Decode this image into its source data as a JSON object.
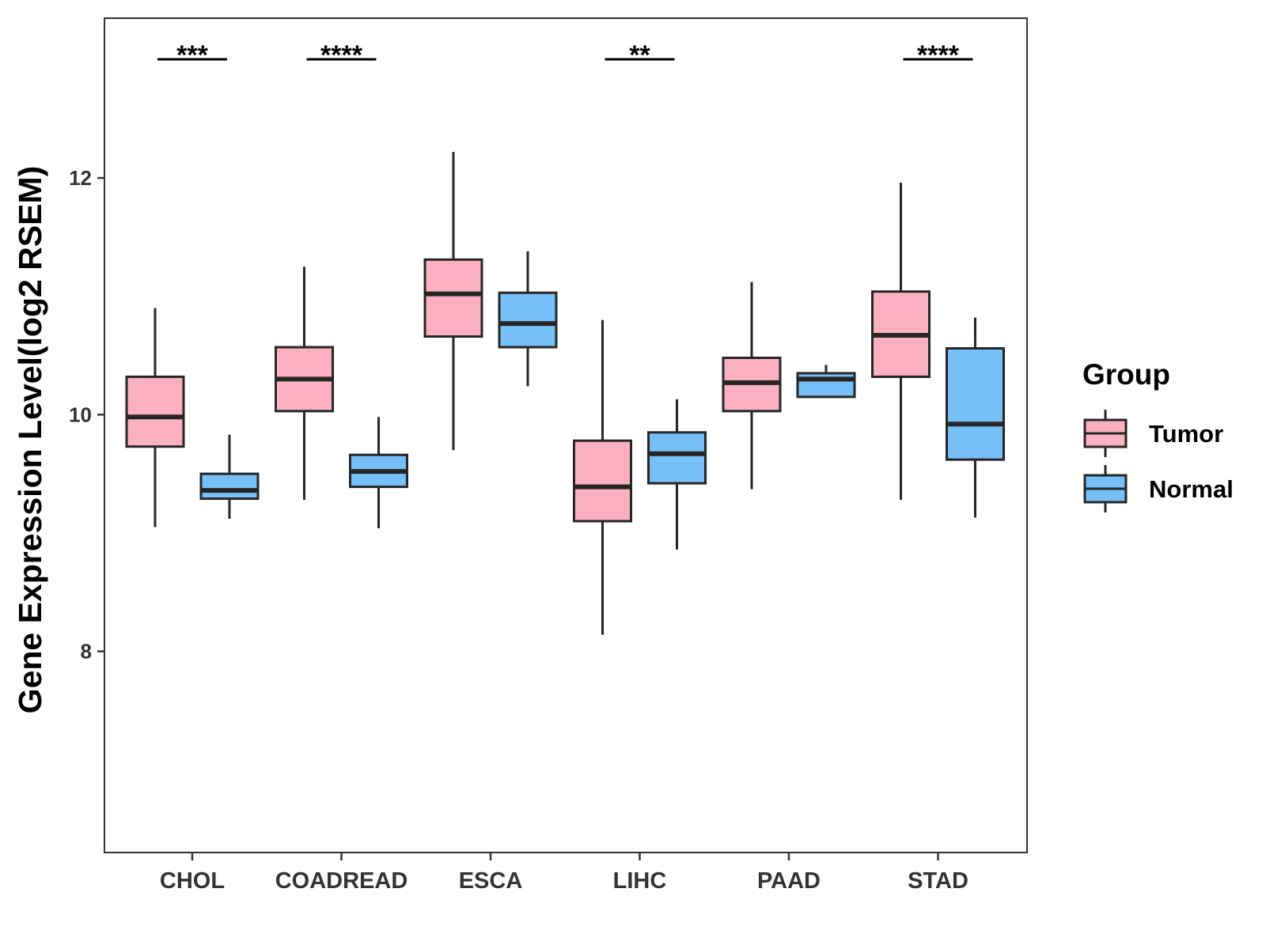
{
  "chart_data": {
    "type": "boxplot",
    "title": "",
    "xlabel": "",
    "ylabel": "Gene Expression Level(log2 RSEM)",
    "ylim": [
      6.3,
      13.35
    ],
    "yticks": [
      8,
      10,
      12
    ],
    "categories": [
      "CHOL",
      "COADREAD",
      "ESCA",
      "LIHC",
      "PAAD",
      "STAD"
    ],
    "series": [
      {
        "name": "Tumor",
        "color": "#FBB0C1",
        "boxes": [
          {
            "whisker_low": 9.05,
            "q1": 9.73,
            "median": 9.98,
            "q3": 10.32,
            "whisker_high": 10.9
          },
          {
            "whisker_low": 9.28,
            "q1": 10.03,
            "median": 10.3,
            "q3": 10.57,
            "whisker_high": 11.25
          },
          {
            "whisker_low": 9.7,
            "q1": 10.66,
            "median": 11.02,
            "q3": 11.31,
            "whisker_high": 12.22
          },
          {
            "whisker_low": 8.14,
            "q1": 9.1,
            "median": 9.39,
            "q3": 9.78,
            "whisker_high": 10.8
          },
          {
            "whisker_low": 9.37,
            "q1": 10.03,
            "median": 10.27,
            "q3": 10.48,
            "whisker_high": 11.12
          },
          {
            "whisker_low": 9.28,
            "q1": 10.32,
            "median": 10.67,
            "q3": 11.04,
            "whisker_high": 11.96
          }
        ]
      },
      {
        "name": "Normal",
        "color": "#76BFF7",
        "boxes": [
          {
            "whisker_low": 9.12,
            "q1": 9.29,
            "median": 9.36,
            "q3": 9.5,
            "whisker_high": 9.83
          },
          {
            "whisker_low": 9.04,
            "q1": 9.39,
            "median": 9.52,
            "q3": 9.66,
            "whisker_high": 9.98
          },
          {
            "whisker_low": 10.24,
            "q1": 10.57,
            "median": 10.77,
            "q3": 11.03,
            "whisker_high": 11.38
          },
          {
            "whisker_low": 8.86,
            "q1": 9.42,
            "median": 9.67,
            "q3": 9.85,
            "whisker_high": 10.13
          },
          {
            "whisker_low": 10.15,
            "q1": 10.15,
            "median": 10.3,
            "q3": 10.35,
            "whisker_high": 10.42
          },
          {
            "whisker_low": 9.13,
            "q1": 9.62,
            "median": 9.92,
            "q3": 10.56,
            "whisker_high": 10.82
          }
        ]
      }
    ],
    "significance": [
      {
        "category": "CHOL",
        "label": "***"
      },
      {
        "category": "COADREAD",
        "label": "****"
      },
      {
        "category": "LIHC",
        "label": "**"
      },
      {
        "category": "STAD",
        "label": "****"
      }
    ],
    "legend": {
      "title": "Group",
      "position": "right",
      "entries": [
        "Tumor",
        "Normal"
      ]
    },
    "grid": false
  }
}
